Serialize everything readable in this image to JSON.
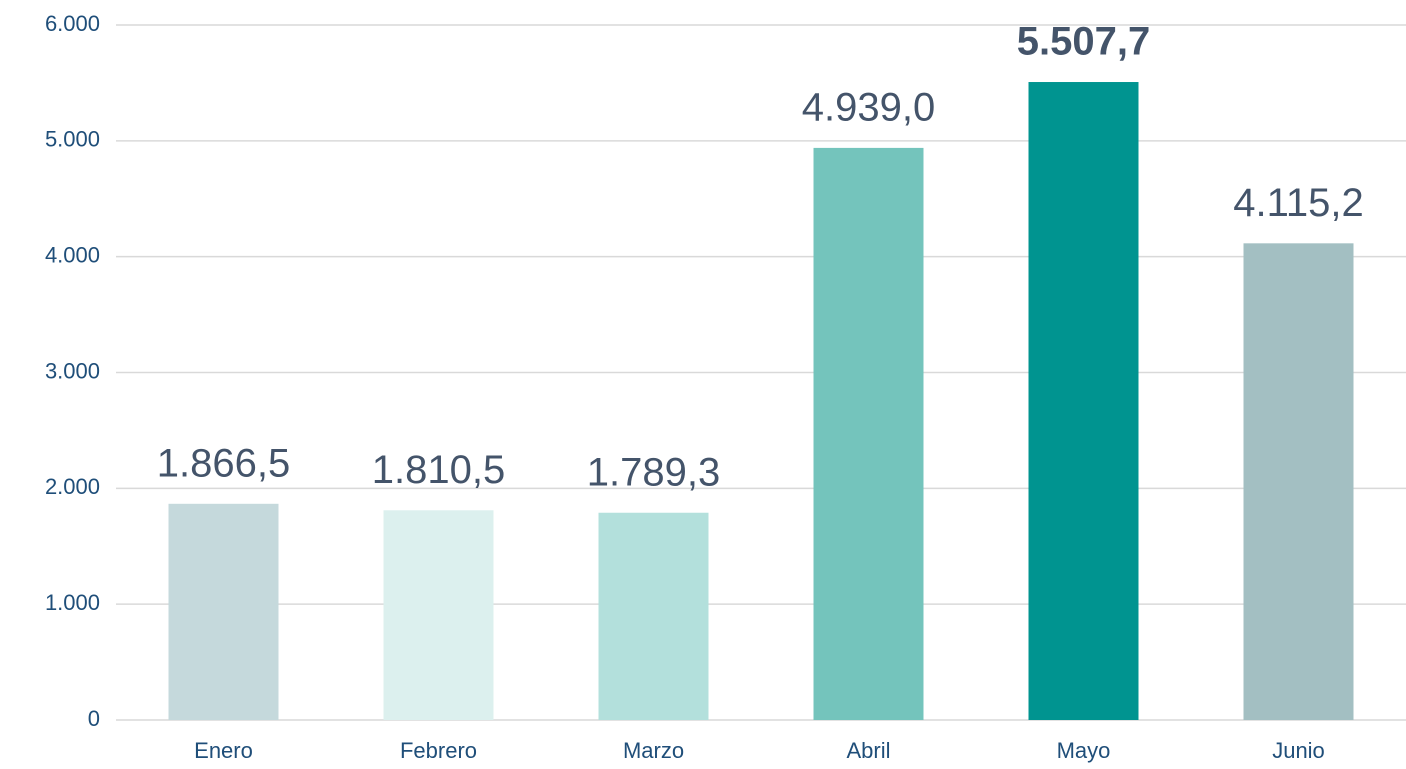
{
  "chart_data": {
    "type": "bar",
    "categories": [
      "Enero",
      "Febrero",
      "Marzo",
      "Abril",
      "Mayo",
      "Junio"
    ],
    "values": [
      1866.5,
      1810.5,
      1789.3,
      4939.0,
      5507.7,
      4115.2
    ],
    "value_labels": [
      "1.866,5",
      "1.810,5",
      "1.789,3",
      "4.939,0",
      "5.507,7",
      "4.115,2"
    ],
    "colors": [
      "#c5d9dc",
      "#dcf0ee",
      "#b3e0dc",
      "#74c4bc",
      "#009490",
      "#a3bfc2"
    ],
    "highlight_index": 4,
    "ylim": [
      0,
      6000
    ],
    "yticks": [
      0,
      {
        "value": 1000,
        "label": "1.000"
      },
      {
        "value": 2000,
        "label": "2.000"
      },
      {
        "value": 3000,
        "label": "3.000"
      },
      {
        "value": 4000,
        "label": "4.000"
      },
      {
        "value": 5000,
        "label": "5.000"
      },
      {
        "value": 6000,
        "label": "6.000"
      }
    ],
    "grid": true
  }
}
